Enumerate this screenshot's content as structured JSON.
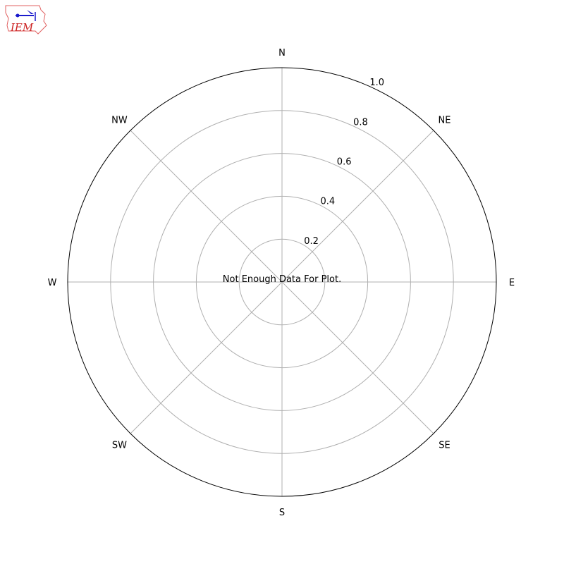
{
  "logo": {
    "text": "IEM",
    "colors": {
      "outline": "#e06060",
      "text": "#cc2222",
      "symbol": "#1a1acc"
    }
  },
  "chart_data": {
    "type": "polar",
    "title": "",
    "message": "Not Enough Data For Plot.",
    "direction_labels": [
      "N",
      "NE",
      "E",
      "SE",
      "S",
      "SW",
      "W",
      "NW"
    ],
    "radial_ticks": [
      0.2,
      0.4,
      0.6,
      0.8,
      1.0
    ],
    "radial_tick_labels": [
      "0.2",
      "0.4",
      "0.6",
      "0.8",
      "1.0"
    ],
    "rlim": [
      0,
      1.0
    ],
    "grid": true,
    "series": [],
    "colors": {
      "grid": "#b0b0b0",
      "frame": "#000000"
    }
  }
}
